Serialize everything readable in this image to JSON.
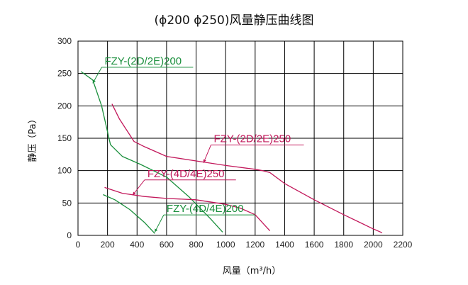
{
  "chart_data": {
    "type": "line",
    "title": "(ϕ200  ϕ250)风量静压曲线图",
    "xlabel": "风量（m³/h）",
    "ylabel": "静压（Pa）",
    "xlim": [
      0,
      2200
    ],
    "ylim": [
      0,
      300
    ],
    "x_ticks": [
      "0",
      "200",
      "400",
      "600",
      "800",
      "1000",
      "1200",
      "1400",
      "1600",
      "1800",
      "2000",
      "2200"
    ],
    "y_ticks": [
      "0",
      "50",
      "100",
      "150",
      "200",
      "250",
      "300"
    ],
    "grid": true,
    "series": [
      {
        "name": "FZY-(2D/2E)200",
        "color": "#1a8f3c",
        "points": [
          [
            20,
            253
          ],
          [
            100,
            240
          ],
          [
            160,
            200
          ],
          [
            220,
            140
          ],
          [
            300,
            122
          ],
          [
            420,
            110
          ],
          [
            600,
            90
          ],
          [
            750,
            60
          ],
          [
            900,
            25
          ],
          [
            980,
            5
          ]
        ]
      },
      {
        "name": "FZY-(2D/2E)250",
        "color": "#c2185b",
        "points": [
          [
            230,
            203
          ],
          [
            280,
            180
          ],
          [
            380,
            145
          ],
          [
            450,
            137
          ],
          [
            600,
            122
          ],
          [
            800,
            115
          ],
          [
            1000,
            108
          ],
          [
            1200,
            102
          ],
          [
            1250,
            100
          ],
          [
            1300,
            97
          ],
          [
            1400,
            80
          ],
          [
            1600,
            55
          ],
          [
            1800,
            32
          ],
          [
            2000,
            10
          ],
          [
            2060,
            4
          ]
        ]
      },
      {
        "name": "FZY-(4D/4E)250",
        "color": "#c2185b",
        "points": [
          [
            180,
            74
          ],
          [
            300,
            65
          ],
          [
            450,
            60
          ],
          [
            600,
            57
          ],
          [
            800,
            55
          ],
          [
            1000,
            48
          ],
          [
            1100,
            42
          ],
          [
            1200,
            32
          ],
          [
            1300,
            7
          ]
        ]
      },
      {
        "name": "FZY-(4D/4E)200",
        "color": "#1a8f3c",
        "points": [
          [
            170,
            63
          ],
          [
            250,
            55
          ],
          [
            350,
            40
          ],
          [
            450,
            20
          ],
          [
            520,
            3
          ]
        ]
      }
    ],
    "annotations": [
      {
        "series": 0,
        "text": "FZY-(2D/2E)200",
        "text_x": 180,
        "text_y": 264,
        "leader_to": [
          100,
          235
        ],
        "underline_to_x": 780
      },
      {
        "series": 1,
        "text": "FZY-(2D/2E)250",
        "text_x": 920,
        "text_y": 144,
        "leader_to": [
          850,
          112
        ],
        "underline_to_x": 1530
      },
      {
        "series": 2,
        "text": "FZY-(4D/4E)250",
        "text_x": 470,
        "text_y": 90,
        "leader_to": [
          370,
          62
        ],
        "underline_to_x": 1070
      },
      {
        "series": 3,
        "text": "FZY-(4D/4E)200",
        "text_x": 600,
        "text_y": 36,
        "leader_to": [
          520,
          5
        ],
        "underline_to_x": 1200
      }
    ]
  }
}
